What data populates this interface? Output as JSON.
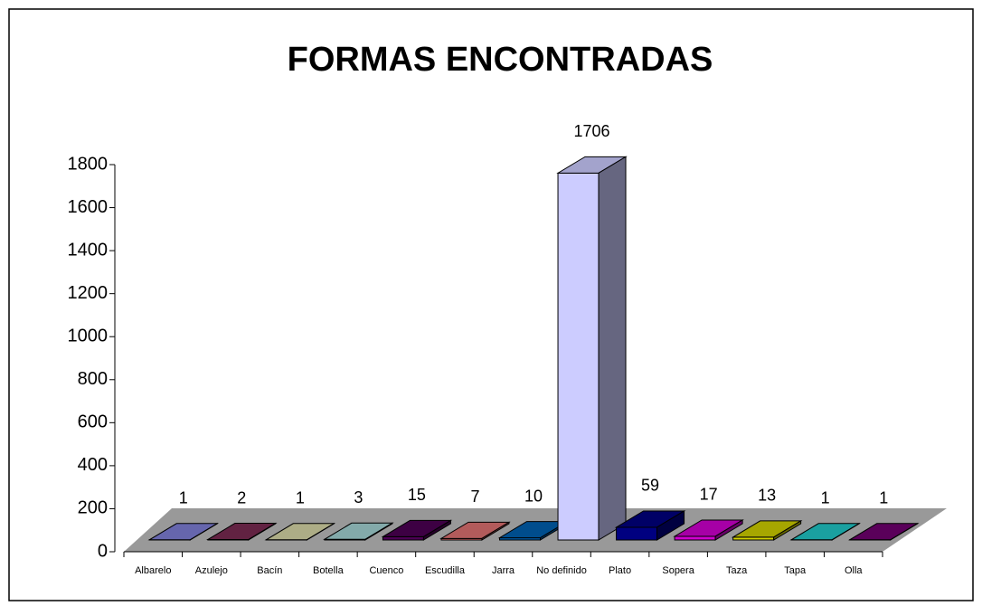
{
  "chart_data": {
    "type": "bar3d",
    "title": "FORMAS ENCONTRADAS",
    "categories": [
      "Albarelo",
      "Azulejo",
      "Bacín",
      "Botella",
      "Cuenco",
      "Escudilla",
      "Jarra",
      "No definido",
      "Plato",
      "Sopera",
      "Taza",
      "Tapa",
      "Olla"
    ],
    "values": [
      1,
      2,
      1,
      3,
      15,
      7,
      10,
      1706,
      59,
      17,
      13,
      1,
      1
    ],
    "colors": [
      "#7f7fd8",
      "#7a2a52",
      "#d8d8a8",
      "#a4d4d4",
      "#4c0054",
      "#e07272",
      "#0060b0",
      "#ccccff",
      "#000080",
      "#d000d0",
      "#d0d000",
      "#20c8c8",
      "#700070"
    ],
    "ylim": [
      0,
      1800
    ],
    "yticks": [
      0,
      200,
      400,
      600,
      800,
      1000,
      1200,
      1400,
      1600,
      1800
    ]
  }
}
